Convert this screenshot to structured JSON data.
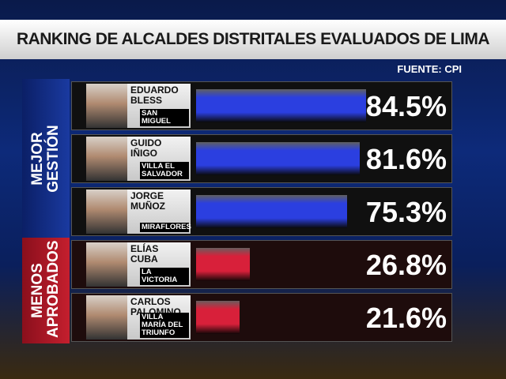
{
  "chart_data": {
    "type": "bar",
    "orientation": "horizontal",
    "title": "RANKING DE ALCALDES DISTRITALES EVALUADOS DE LIMA",
    "source": "FUENTE: CPI",
    "groups": [
      {
        "label": "MEJOR GESTIÓN",
        "color": "#2b3fe0",
        "categories": [
          "EDUARDO BLESS",
          "GUIDO IÑIGO",
          "JORGE MUÑOZ"
        ],
        "districts": [
          "SAN MIGUEL",
          "VILLA EL SALVADOR",
          "MIRAFLORES"
        ],
        "values": [
          84.5,
          81.6,
          75.3
        ],
        "value_labels": [
          "84.5%",
          "81.6%",
          "75.3%"
        ]
      },
      {
        "label": "MENOS APROBADOS",
        "color": "#d8203a",
        "categories": [
          "ELÍAS CUBA",
          "CARLOS PALOMINO"
        ],
        "districts": [
          "LA VICTORIA",
          "VILLA MARÍA DEL TRIUNFO"
        ],
        "values": [
          26.8,
          21.6
        ],
        "value_labels": [
          "26.8%",
          "21.6%"
        ]
      }
    ]
  }
}
